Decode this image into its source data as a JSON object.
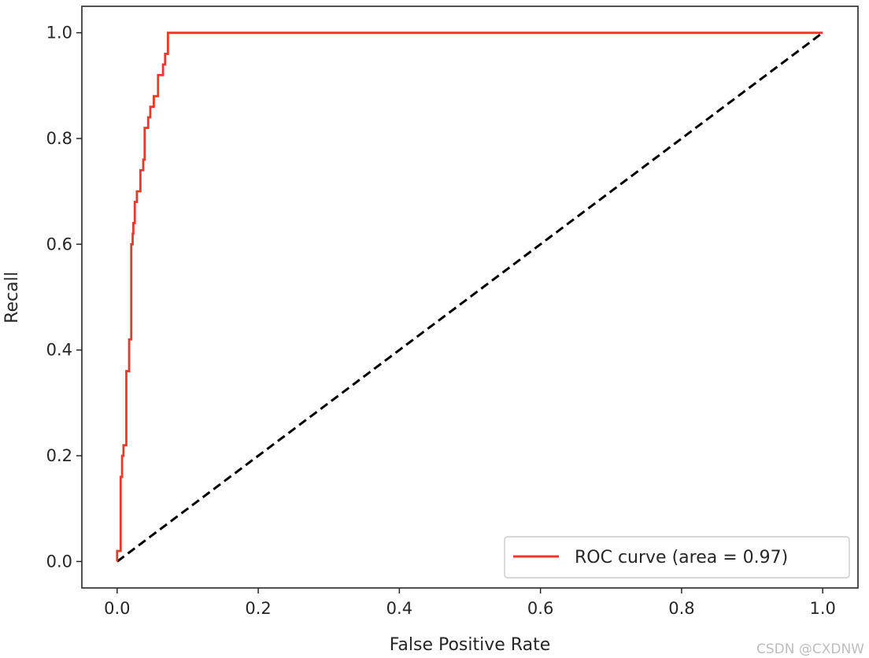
{
  "chart_data": {
    "type": "line",
    "title": "",
    "xlabel": "False Positive Rate",
    "ylabel": "Recall",
    "xlim": [
      -0.05,
      1.05
    ],
    "ylim": [
      -0.05,
      1.05
    ],
    "x_ticks": [
      0.0,
      0.2,
      0.4,
      0.6,
      0.8,
      1.0
    ],
    "x_tick_labels": [
      "0.0",
      "0.2",
      "0.4",
      "0.6",
      "0.8",
      "1.0"
    ],
    "y_ticks": [
      0.0,
      0.2,
      0.4,
      0.6,
      0.8,
      1.0
    ],
    "y_tick_labels": [
      "0.0",
      "0.2",
      "0.4",
      "0.6",
      "0.8",
      "1.0"
    ],
    "grid": false,
    "legend_position": "lower-right",
    "series": [
      {
        "name": "ROC curve (area = 0.97)",
        "color": "#e8392a",
        "style": "step",
        "x": [
          0.0,
          0.0,
          0.005,
          0.005,
          0.007,
          0.007,
          0.009,
          0.009,
          0.013,
          0.013,
          0.017,
          0.017,
          0.02,
          0.02,
          0.022,
          0.022,
          0.023,
          0.023,
          0.025,
          0.025,
          0.028,
          0.028,
          0.033,
          0.033,
          0.037,
          0.037,
          0.039,
          0.039,
          0.044,
          0.044,
          0.047,
          0.047,
          0.052,
          0.052,
          0.058,
          0.058,
          0.065,
          0.065,
          0.068,
          0.068,
          0.072,
          0.072,
          0.085,
          0.085,
          1.0
        ],
        "y": [
          0.0,
          0.02,
          0.02,
          0.16,
          0.16,
          0.2,
          0.2,
          0.22,
          0.22,
          0.36,
          0.36,
          0.42,
          0.42,
          0.6,
          0.6,
          0.62,
          0.62,
          0.64,
          0.64,
          0.68,
          0.68,
          0.7,
          0.7,
          0.74,
          0.74,
          0.76,
          0.76,
          0.82,
          0.82,
          0.84,
          0.84,
          0.86,
          0.86,
          0.88,
          0.88,
          0.92,
          0.92,
          0.94,
          0.94,
          0.96,
          0.96,
          1.0,
          1.0,
          1.0,
          1.0
        ]
      },
      {
        "name": "",
        "color": "#000000",
        "style": "dashed",
        "x": [
          0.0,
          1.0
        ],
        "y": [
          0.0,
          1.0
        ]
      }
    ],
    "watermark": "CSDN @CXDNW"
  }
}
